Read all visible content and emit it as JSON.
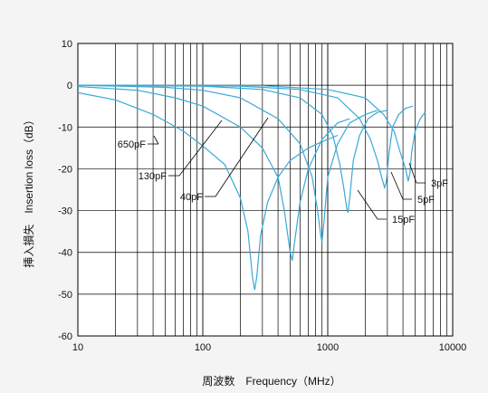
{
  "chart_data": {
    "type": "line",
    "xlabel": "周波数　Frequency（MHz）",
    "ylabel": "挿入損失　Insertion loss（dB）",
    "x_scale": "log",
    "xlim": [
      10,
      10000
    ],
    "ylim": [
      -60,
      10
    ],
    "x_ticks": [
      "10",
      "100",
      "1000",
      "10000"
    ],
    "y_ticks": [
      "10",
      "0",
      "-10",
      "-20",
      "-30",
      "-40",
      "-50",
      "-60"
    ],
    "y_tick_values": [
      10,
      0,
      -10,
      -20,
      -30,
      -40,
      -50,
      -60
    ],
    "grid": true,
    "series_color": "#3aa9d6",
    "series": [
      {
        "name": "650pF",
        "label_y": -15,
        "x": [
          10,
          20,
          40,
          70,
          100,
          150,
          200,
          230,
          250,
          260,
          270,
          290,
          330,
          400,
          500,
          700,
          900,
          1200
        ],
        "y": [
          -1.8,
          -3.5,
          -7,
          -11,
          -14.5,
          -19,
          -27,
          -35,
          -46,
          -49,
          -46,
          -36,
          -28,
          -22,
          -18,
          -15,
          -13.5,
          -12
        ]
      },
      {
        "name": "130pF",
        "label_y": -22,
        "x": [
          10,
          30,
          60,
          100,
          200,
          300,
          400,
          450,
          500,
          520,
          540,
          600,
          700,
          900,
          1200,
          1500
        ],
        "y": [
          -0.3,
          -1.2,
          -3,
          -5,
          -10,
          -15,
          -22,
          -30,
          -40,
          -42,
          -38,
          -28,
          -20,
          -13,
          -9,
          -8
        ]
      },
      {
        "name": "40pF",
        "label_y": -26.5,
        "x": [
          10,
          50,
          100,
          200,
          400,
          600,
          750,
          830,
          880,
          900,
          930,
          1000,
          1200,
          1500,
          2000,
          2500
        ],
        "y": [
          0,
          -0.5,
          -1.2,
          -3,
          -8,
          -14,
          -22,
          -30,
          -36,
          -37.5,
          -33,
          -22,
          -14,
          -9,
          -7,
          -6
        ]
      },
      {
        "name": "15pF",
        "label_y": -33,
        "x": [
          10,
          100,
          300,
          600,
          900,
          1100,
          1250,
          1350,
          1420,
          1450,
          1500,
          1600,
          1800,
          2100,
          2500,
          3000
        ],
        "y": [
          0,
          -0.2,
          -1,
          -3,
          -7,
          -12,
          -19,
          -25,
          -29.5,
          -30.5,
          -27,
          -18,
          -12,
          -8,
          -6.5,
          -6
        ]
      },
      {
        "name": "5pF",
        "label_y": -28.5,
        "x": [
          10,
          200,
          600,
          1200,
          1800,
          2200,
          2500,
          2700,
          2850,
          2950,
          3100,
          3300,
          3700,
          4200,
          4800
        ],
        "y": [
          0,
          -0.2,
          -1,
          -3,
          -8,
          -13,
          -18,
          -22,
          -24.5,
          -23,
          -16,
          -10,
          -7,
          -5.5,
          -5
        ]
      },
      {
        "name": "3pF",
        "label_y": -24.5,
        "x": [
          10,
          300,
          1000,
          2000,
          2800,
          3400,
          3800,
          4200,
          4400,
          4550,
          4700,
          5000,
          5500,
          6000
        ],
        "y": [
          0,
          -0.1,
          -1,
          -3,
          -7,
          -11,
          -16,
          -20,
          -23,
          -21,
          -16,
          -11,
          -8,
          -6.5
        ]
      }
    ]
  }
}
